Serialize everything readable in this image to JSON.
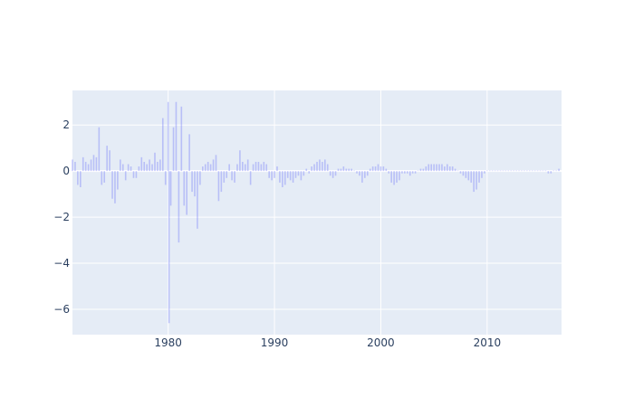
{
  "chart_data": {
    "type": "bar",
    "title": "",
    "xlabel": "",
    "ylabel": "",
    "x_axis": {
      "type": "date",
      "range": [
        "1971-01-01",
        "2016-12-31"
      ],
      "tick_labels": [
        "1980",
        "1990",
        "2000",
        "2010"
      ]
    },
    "y_axis": {
      "range": [
        -7.1,
        3.5
      ],
      "tick_labels": [
        "2",
        "0",
        "−2",
        "−4",
        "−6"
      ]
    },
    "grid": true,
    "legend": "none",
    "colors": {
      "bar": "#636efa",
      "plot_bg": "#e5ecf6",
      "grid": "#ffffff",
      "page_bg": "#ffffff"
    },
    "series": [
      {
        "points": [
          [
            "1971-01",
            0.5
          ],
          [
            "1971-04",
            0.4
          ],
          [
            "1971-07",
            -0.6
          ],
          [
            "1971-10",
            -0.7
          ],
          [
            "1972-01",
            0.6
          ],
          [
            "1972-04",
            0.4
          ],
          [
            "1972-07",
            0.3
          ],
          [
            "1972-10",
            0.5
          ],
          [
            "1973-01",
            0.7
          ],
          [
            "1973-04",
            0.6
          ],
          [
            "1973-07",
            1.9
          ],
          [
            "1973-10",
            -0.6
          ],
          [
            "1974-01",
            -0.5
          ],
          [
            "1974-04",
            1.1
          ],
          [
            "1974-07",
            0.9
          ],
          [
            "1974-10",
            -1.2
          ],
          [
            "1975-01",
            -1.4
          ],
          [
            "1975-04",
            -0.8
          ],
          [
            "1975-07",
            0.5
          ],
          [
            "1975-10",
            0.3
          ],
          [
            "1976-01",
            -0.4
          ],
          [
            "1976-04",
            0.3
          ],
          [
            "1976-07",
            0.2
          ],
          [
            "1976-10",
            -0.3
          ],
          [
            "1977-01",
            -0.3
          ],
          [
            "1977-04",
            0.2
          ],
          [
            "1977-07",
            0.6
          ],
          [
            "1977-10",
            0.4
          ],
          [
            "1978-01",
            0.3
          ],
          [
            "1978-04",
            0.5
          ],
          [
            "1978-07",
            0.3
          ],
          [
            "1978-10",
            0.8
          ],
          [
            "1979-01",
            0.4
          ],
          [
            "1979-04",
            0.5
          ],
          [
            "1979-07",
            2.3
          ],
          [
            "1979-10",
            -0.6
          ],
          [
            "1980-01",
            3.0
          ],
          [
            "1980-02",
            -6.6
          ],
          [
            "1980-04",
            -1.5
          ],
          [
            "1980-07",
            1.9
          ],
          [
            "1980-10",
            3.0
          ],
          [
            "1981-01",
            -3.1
          ],
          [
            "1981-04",
            2.8
          ],
          [
            "1981-07",
            -1.5
          ],
          [
            "1981-10",
            -1.9
          ],
          [
            "1982-01",
            1.6
          ],
          [
            "1982-04",
            -0.9
          ],
          [
            "1982-07",
            -1.1
          ],
          [
            "1982-10",
            -2.5
          ],
          [
            "1983-01",
            -0.6
          ],
          [
            "1983-04",
            0.2
          ],
          [
            "1983-07",
            0.3
          ],
          [
            "1983-10",
            0.4
          ],
          [
            "1984-01",
            0.3
          ],
          [
            "1984-04",
            0.5
          ],
          [
            "1984-07",
            0.7
          ],
          [
            "1984-10",
            -1.3
          ],
          [
            "1985-01",
            -0.9
          ],
          [
            "1985-04",
            -0.5
          ],
          [
            "1985-07",
            -0.3
          ],
          [
            "1985-10",
            0.3
          ],
          [
            "1986-01",
            -0.4
          ],
          [
            "1986-04",
            -0.5
          ],
          [
            "1986-07",
            0.3
          ],
          [
            "1986-10",
            0.9
          ],
          [
            "1987-01",
            0.4
          ],
          [
            "1987-04",
            0.3
          ],
          [
            "1987-07",
            0.5
          ],
          [
            "1987-10",
            -0.6
          ],
          [
            "1988-01",
            0.3
          ],
          [
            "1988-04",
            0.4
          ],
          [
            "1988-07",
            0.4
          ],
          [
            "1988-10",
            0.3
          ],
          [
            "1989-01",
            0.4
          ],
          [
            "1989-04",
            0.3
          ],
          [
            "1989-07",
            -0.3
          ],
          [
            "1989-10",
            -0.4
          ],
          [
            "1990-01",
            -0.3
          ],
          [
            "1990-04",
            0.2
          ],
          [
            "1990-07",
            -0.5
          ],
          [
            "1990-10",
            -0.7
          ],
          [
            "1991-01",
            -0.6
          ],
          [
            "1991-04",
            -0.3
          ],
          [
            "1991-07",
            -0.4
          ],
          [
            "1991-10",
            -0.5
          ],
          [
            "1992-01",
            -0.3
          ],
          [
            "1992-04",
            -0.2
          ],
          [
            "1992-07",
            -0.4
          ],
          [
            "1992-10",
            -0.2
          ],
          [
            "1993-01",
            0.1
          ],
          [
            "1993-04",
            -0.1
          ],
          [
            "1993-07",
            0.2
          ],
          [
            "1993-10",
            0.3
          ],
          [
            "1994-01",
            0.4
          ],
          [
            "1994-04",
            0.5
          ],
          [
            "1994-07",
            0.4
          ],
          [
            "1994-10",
            0.5
          ],
          [
            "1995-01",
            0.3
          ],
          [
            "1995-04",
            -0.2
          ],
          [
            "1995-07",
            -0.3
          ],
          [
            "1995-10",
            -0.2
          ],
          [
            "1996-01",
            0.1
          ],
          [
            "1996-04",
            0.1
          ],
          [
            "1996-07",
            0.2
          ],
          [
            "1996-10",
            0.1
          ],
          [
            "1997-01",
            0.1
          ],
          [
            "1997-04",
            0.1
          ],
          [
            "1997-07",
            0.0
          ],
          [
            "1997-10",
            -0.1
          ],
          [
            "1998-01",
            -0.2
          ],
          [
            "1998-04",
            -0.5
          ],
          [
            "1998-07",
            -0.3
          ],
          [
            "1998-10",
            -0.2
          ],
          [
            "1999-01",
            0.1
          ],
          [
            "1999-04",
            0.2
          ],
          [
            "1999-07",
            0.2
          ],
          [
            "1999-10",
            0.3
          ],
          [
            "2000-01",
            0.2
          ],
          [
            "2000-04",
            0.2
          ],
          [
            "2000-07",
            0.1
          ],
          [
            "2000-10",
            -0.1
          ],
          [
            "2001-01",
            -0.5
          ],
          [
            "2001-04",
            -0.6
          ],
          [
            "2001-07",
            -0.5
          ],
          [
            "2001-10",
            -0.4
          ],
          [
            "2002-01",
            -0.1
          ],
          [
            "2002-04",
            -0.1
          ],
          [
            "2002-07",
            -0.1
          ],
          [
            "2002-10",
            -0.2
          ],
          [
            "2003-01",
            -0.1
          ],
          [
            "2003-04",
            -0.1
          ],
          [
            "2003-07",
            0.0
          ],
          [
            "2003-10",
            0.1
          ],
          [
            "2004-01",
            0.1
          ],
          [
            "2004-04",
            0.2
          ],
          [
            "2004-07",
            0.3
          ],
          [
            "2004-10",
            0.3
          ],
          [
            "2005-01",
            0.3
          ],
          [
            "2005-04",
            0.3
          ],
          [
            "2005-07",
            0.3
          ],
          [
            "2005-10",
            0.3
          ],
          [
            "2006-01",
            0.2
          ],
          [
            "2006-04",
            0.3
          ],
          [
            "2006-07",
            0.2
          ],
          [
            "2006-10",
            0.2
          ],
          [
            "2007-01",
            0.1
          ],
          [
            "2007-04",
            0.0
          ],
          [
            "2007-07",
            -0.1
          ],
          [
            "2007-10",
            -0.2
          ],
          [
            "2008-01",
            -0.3
          ],
          [
            "2008-04",
            -0.4
          ],
          [
            "2008-07",
            -0.5
          ],
          [
            "2008-10",
            -0.9
          ],
          [
            "2009-01",
            -0.8
          ],
          [
            "2009-04",
            -0.5
          ],
          [
            "2009-07",
            -0.3
          ],
          [
            "2009-10",
            -0.1
          ],
          [
            "2010-01",
            0.0
          ],
          [
            "2010-04",
            0.0
          ],
          [
            "2010-07",
            0.0
          ],
          [
            "2010-10",
            0.0
          ],
          [
            "2011-01",
            0.0
          ],
          [
            "2011-04",
            0.0
          ],
          [
            "2011-07",
            0.0
          ],
          [
            "2011-10",
            0.0
          ],
          [
            "2012-01",
            0.0
          ],
          [
            "2012-04",
            0.0
          ],
          [
            "2012-07",
            0.0
          ],
          [
            "2012-10",
            0.0
          ],
          [
            "2013-01",
            0.0
          ],
          [
            "2013-04",
            0.0
          ],
          [
            "2013-07",
            0.0
          ],
          [
            "2013-10",
            0.0
          ],
          [
            "2014-01",
            0.0
          ],
          [
            "2014-04",
            0.0
          ],
          [
            "2014-07",
            0.0
          ],
          [
            "2014-10",
            0.0
          ],
          [
            "2015-01",
            0.0
          ],
          [
            "2015-04",
            0.0
          ],
          [
            "2015-07",
            0.0
          ],
          [
            "2015-10",
            -0.1
          ],
          [
            "2016-01",
            -0.1
          ],
          [
            "2016-04",
            0.0
          ],
          [
            "2016-07",
            0.0
          ],
          [
            "2016-10",
            0.1
          ]
        ]
      }
    ]
  }
}
